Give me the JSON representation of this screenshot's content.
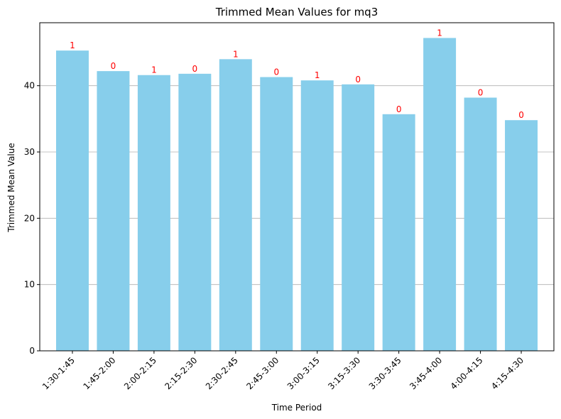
{
  "chart_data": {
    "type": "bar",
    "title": "Trimmed Mean Values for mq3",
    "xlabel": "Time Period",
    "ylabel": "Trimmed Mean Value",
    "categories": [
      "1:30-1:45",
      "1:45-2:00",
      "2:00-2:15",
      "2:15-2:30",
      "2:30-2:45",
      "2:45-3:00",
      "3:00-3:15",
      "3:15-3:30",
      "3:30-3:45",
      "3:45-4:00",
      "4:00-4:15",
      "4:15-4:30"
    ],
    "values": [
      45.3,
      42.2,
      41.6,
      41.8,
      44.0,
      41.3,
      40.8,
      40.2,
      35.7,
      47.2,
      38.2,
      34.8
    ],
    "bar_labels": [
      "1",
      "0",
      "1",
      "0",
      "1",
      "0",
      "1",
      "0",
      "0",
      "1",
      "0",
      "0"
    ],
    "ylim": [
      0,
      49.5
    ],
    "yticks": [
      0,
      10,
      20,
      30,
      40
    ],
    "grid": "y-major",
    "bar_color": "#87ceeb",
    "label_color": "#ff0000",
    "grid_color": "#b0b0b0"
  }
}
